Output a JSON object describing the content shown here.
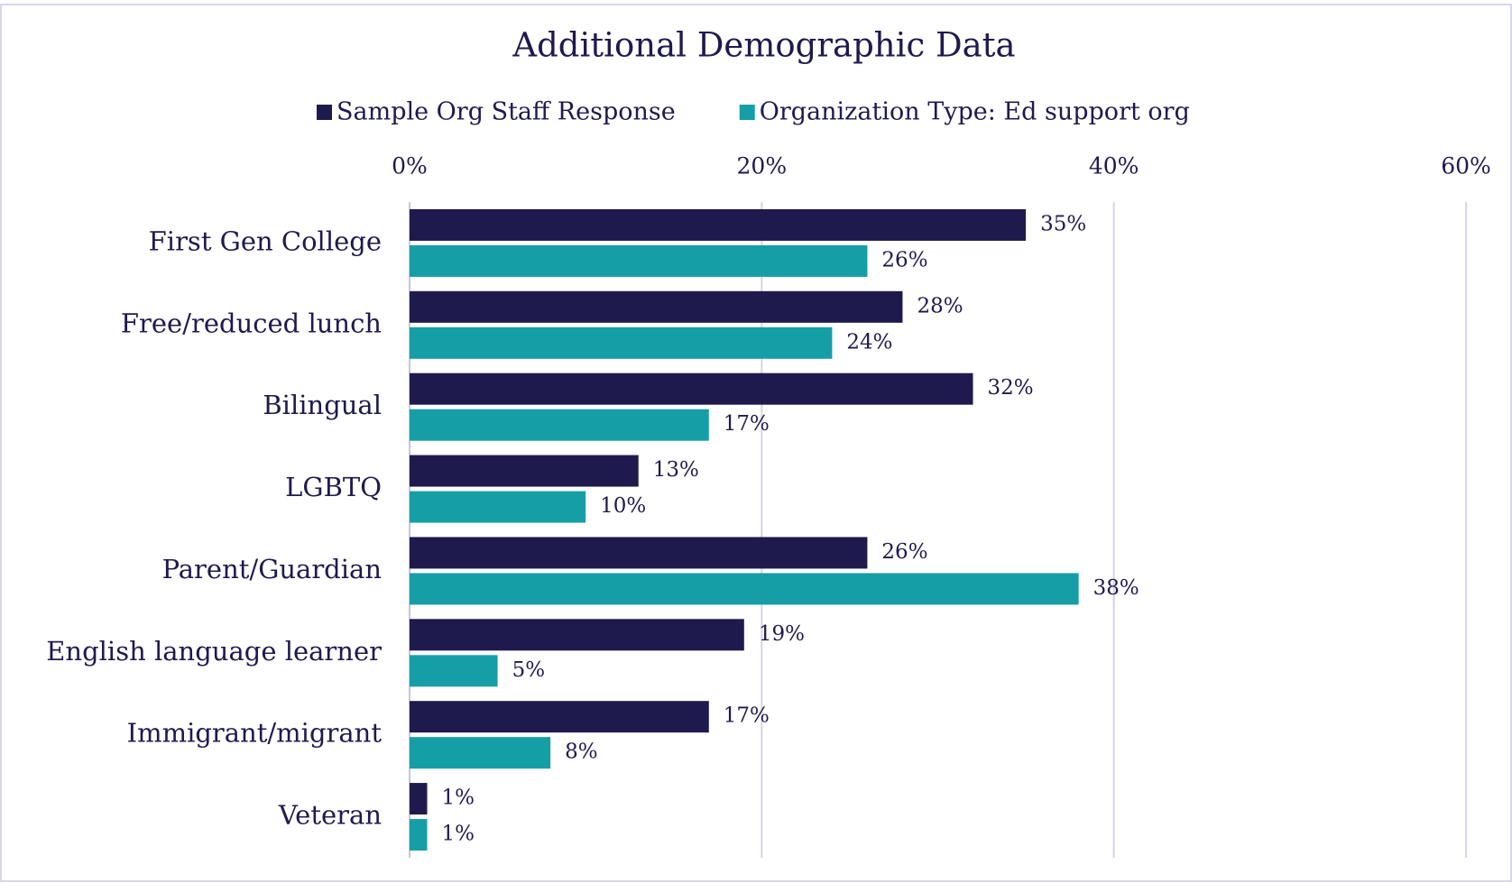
{
  "chart_data": {
    "type": "bar",
    "orientation": "horizontal",
    "title": "Additional Demographic Data",
    "categories": [
      "First Gen College",
      "Free/reduced lunch",
      "Bilingual",
      "LGBTQ",
      "Parent/Guardian",
      "English language learner",
      "Immigrant/migrant",
      "Veteran"
    ],
    "series": [
      {
        "name": "Sample Org Staff Response",
        "color": "#1f1a4d",
        "values": [
          35,
          28,
          32,
          13,
          26,
          19,
          17,
          1
        ],
        "value_labels": [
          "35%",
          "28%",
          "32%",
          "13%",
          "26%",
          "19%",
          "17%",
          "1%"
        ]
      },
      {
        "name": "Organization Type: Ed support org",
        "color": "#169ea6",
        "values": [
          26,
          24,
          17,
          10,
          38,
          5,
          8,
          1
        ],
        "value_labels": [
          "26%",
          "24%",
          "17%",
          "10%",
          "38%",
          "5%",
          "8%",
          "1%"
        ]
      }
    ],
    "xlim": [
      0,
      60
    ],
    "xticks": [
      {
        "value": 0,
        "label": "0%"
      },
      {
        "value": 20,
        "label": "20%"
      },
      {
        "value": 40,
        "label": "40%"
      },
      {
        "value": 60,
        "label": "60%"
      }
    ],
    "grid": true,
    "legend": "top"
  }
}
